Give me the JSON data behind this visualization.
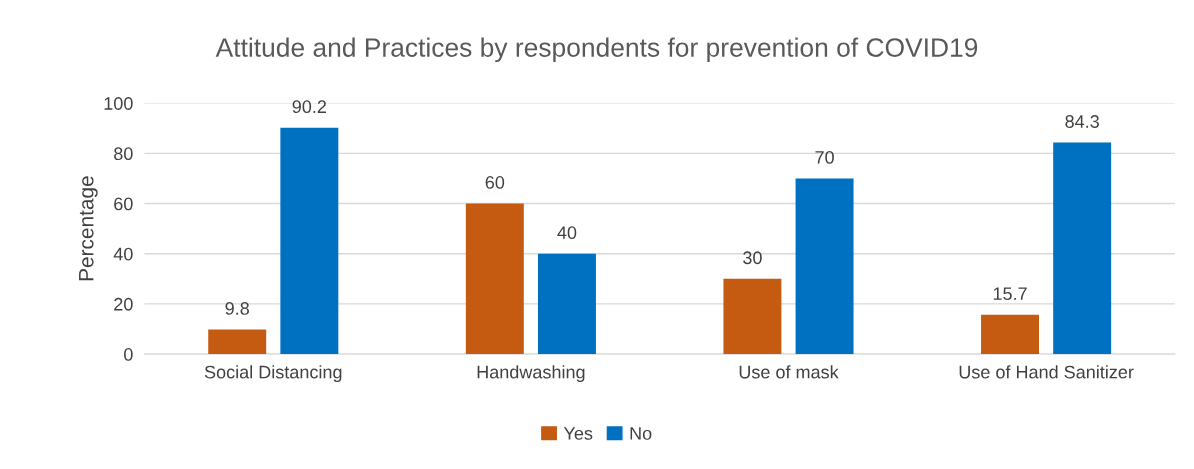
{
  "chart_data": {
    "type": "bar",
    "title": "Attitude and Practices by respondents for prevention of COVID19",
    "ylabel": "Percentage",
    "categories": [
      "Social Distancing",
      "Handwashing",
      "Use of mask",
      "Use of Hand Sanitizer"
    ],
    "series": [
      {
        "name": "Yes",
        "color": "#c55a11",
        "values": [
          9.8,
          60,
          30,
          15.7
        ]
      },
      {
        "name": "No",
        "color": "#0070c0",
        "values": [
          90.2,
          40,
          70,
          84.3
        ]
      }
    ],
    "ylim": [
      0,
      100
    ],
    "yticks": [
      0,
      20,
      40,
      60,
      80,
      100
    ],
    "grid": "y",
    "legend": "bottom",
    "data_labels": true
  }
}
